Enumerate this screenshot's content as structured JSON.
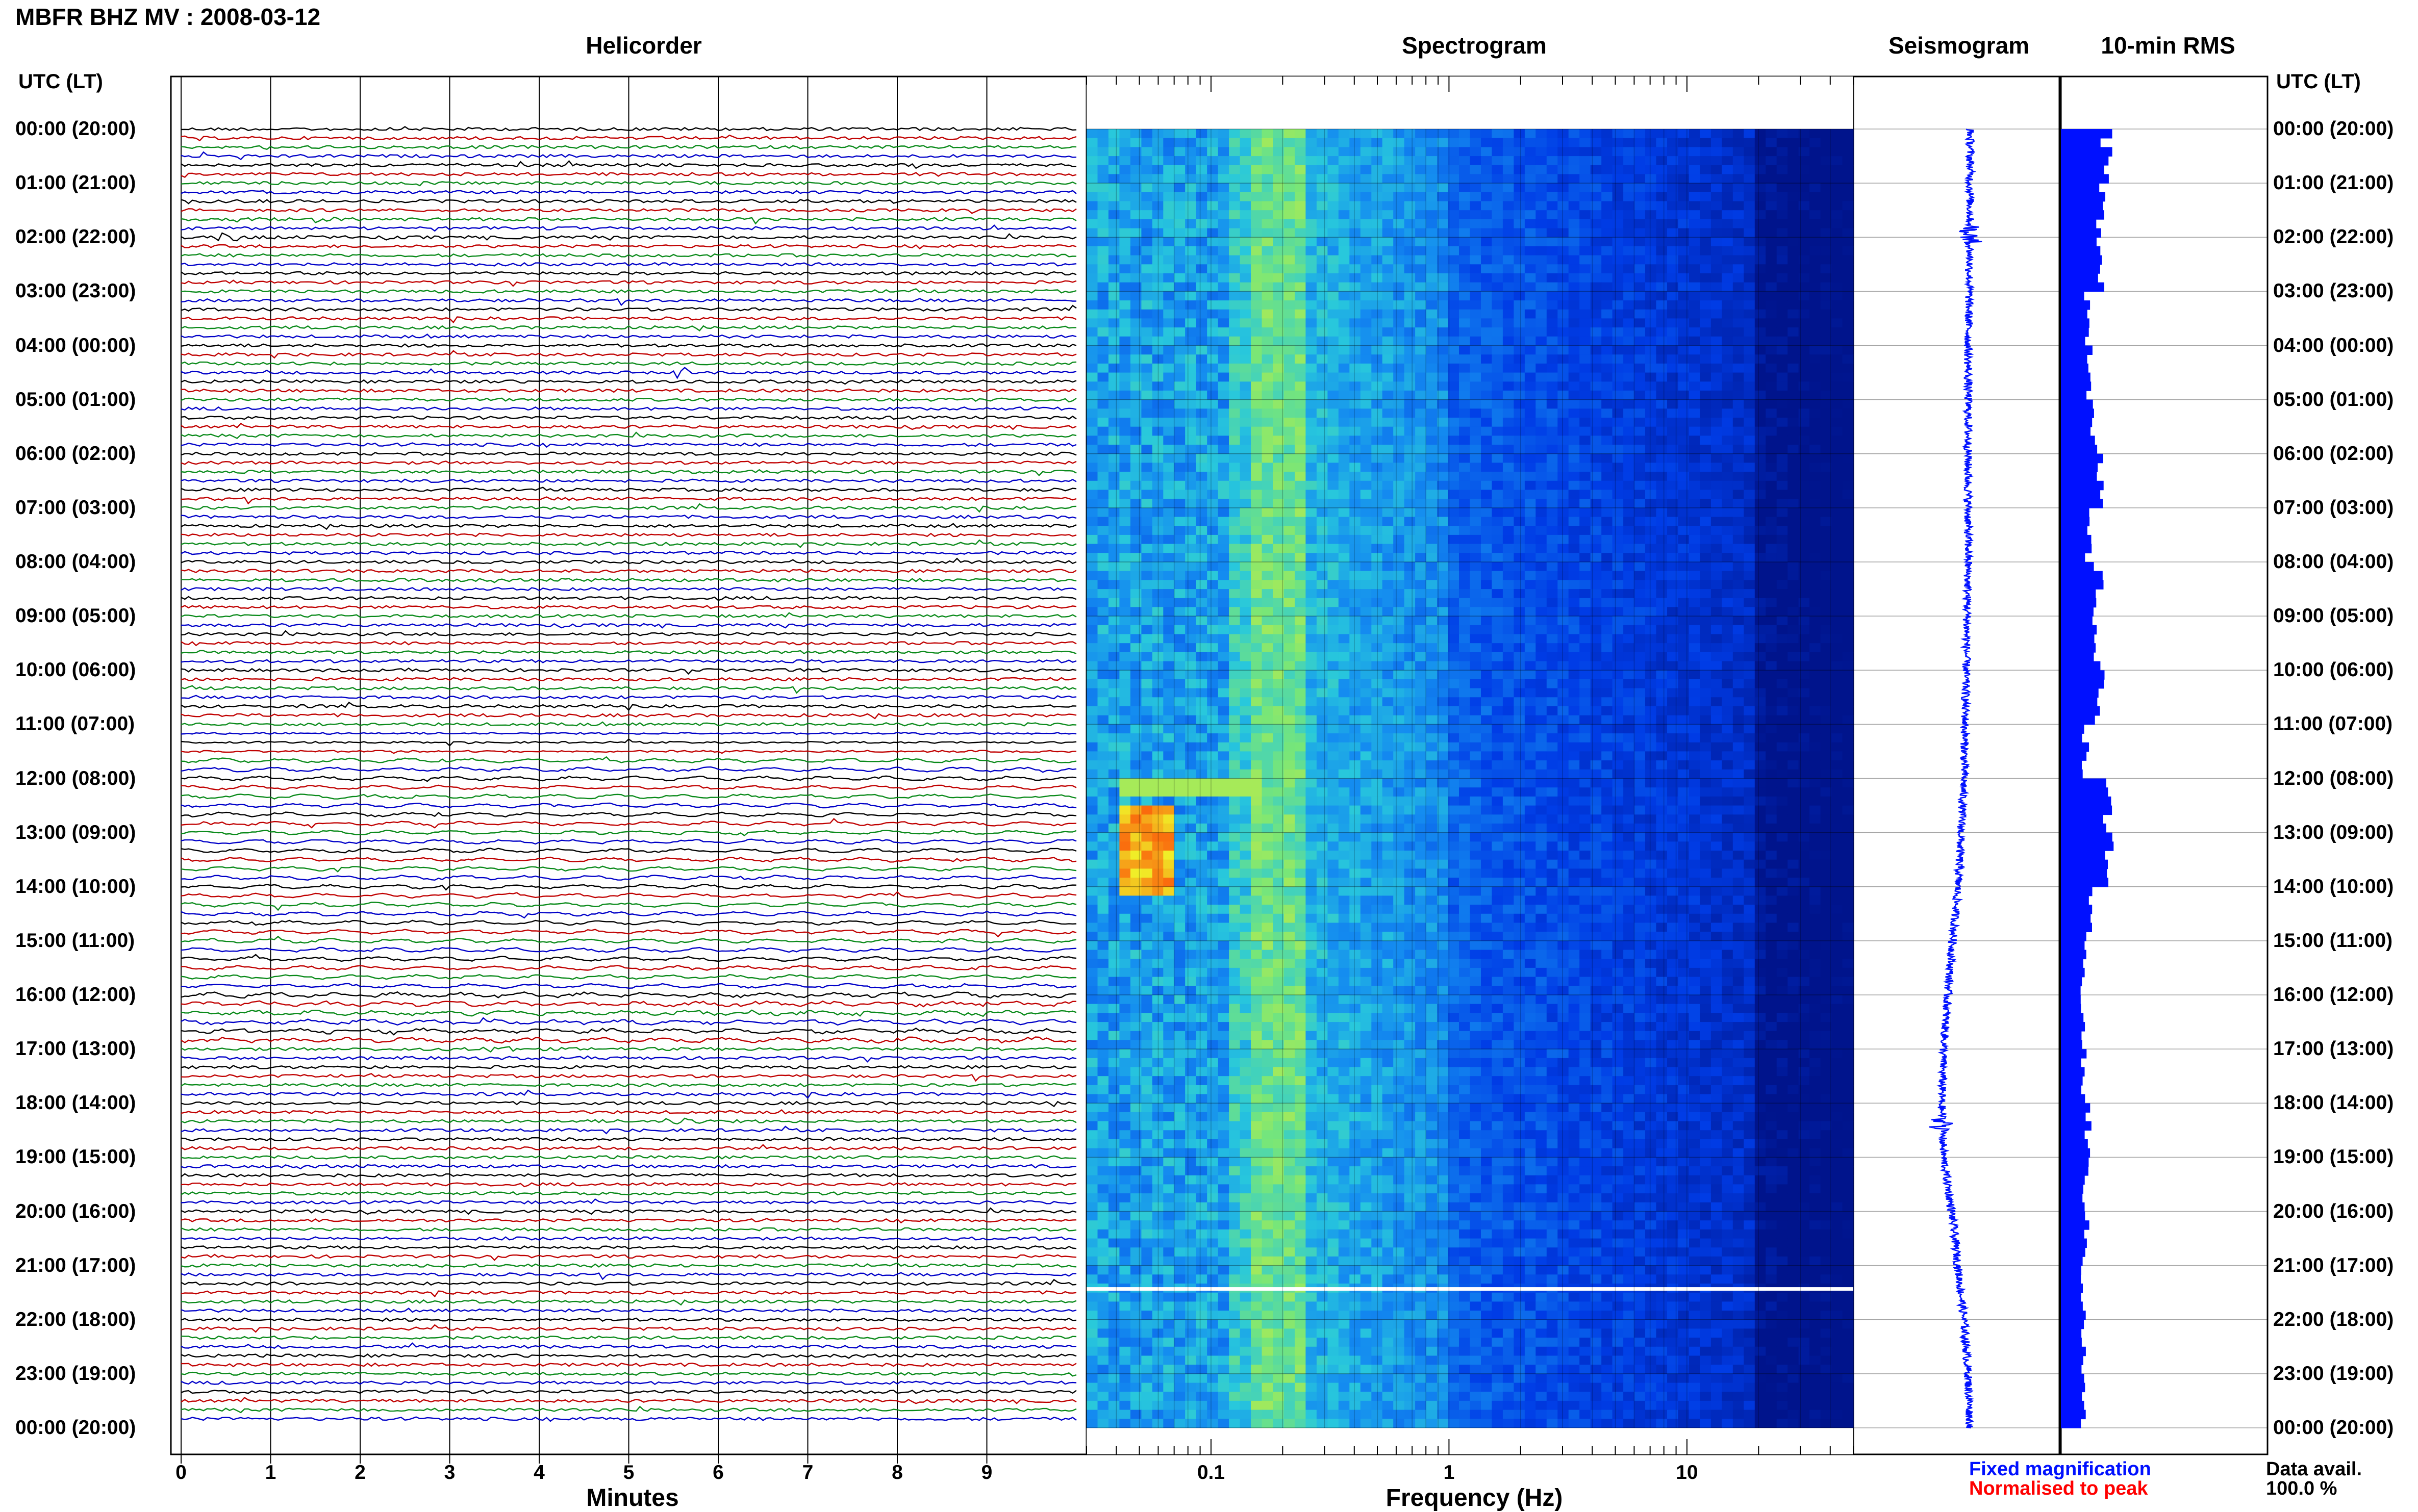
{
  "title": "MBFR BHZ MV : 2008-03-12",
  "panels": {
    "helicorder": "Helicorder",
    "spectrogram": "Spectrogram",
    "seismogram": "Seismogram",
    "rms": "10-min RMS"
  },
  "time_axis_header": "UTC (LT)",
  "time_labels": [
    "00:00 (20:00)",
    "01:00 (21:00)",
    "02:00 (22:00)",
    "03:00 (23:00)",
    "04:00 (00:00)",
    "05:00 (01:00)",
    "06:00 (02:00)",
    "07:00 (03:00)",
    "08:00 (04:00)",
    "09:00 (05:00)",
    "10:00 (06:00)",
    "11:00 (07:00)",
    "12:00 (08:00)",
    "13:00 (09:00)",
    "14:00 (10:00)",
    "15:00 (11:00)",
    "16:00 (12:00)",
    "17:00 (13:00)",
    "18:00 (14:00)",
    "19:00 (15:00)",
    "20:00 (16:00)",
    "21:00 (17:00)",
    "22:00 (18:00)",
    "23:00 (19:00)",
    "00:00 (20:00)"
  ],
  "helicorder_xlabel": "Minutes",
  "helicorder_xticks": [
    "0",
    "1",
    "2",
    "3",
    "4",
    "5",
    "6",
    "7",
    "8",
    "9"
  ],
  "spectrogram_xlabel": "Frequency (Hz)",
  "spectrogram_xticks": [
    "0.1",
    "1",
    "10"
  ],
  "legend": {
    "fixed": "Fixed magnification",
    "normalised": "Normalised to peak",
    "fixed_color": "#0010ff",
    "normalised_color": "#ff0000"
  },
  "data_availability": {
    "label": "Data avail.",
    "value": "100.0 %"
  },
  "colors": {
    "trace_cycle": [
      "#000000",
      "#c00000",
      "#0a8a1a",
      "#0000c8"
    ],
    "spectrogram_low": "#00148c",
    "spectrogram_high": "#ff0000",
    "seismogram": "#0010ff",
    "rms": "#0010ff"
  },
  "chart_data": [
    {
      "type": "line",
      "title": "Helicorder",
      "xlabel": "Minutes",
      "xlim": [
        0,
        10
      ],
      "rows": 144,
      "row_interval": "10 min",
      "series_color_cycle": [
        "black",
        "red",
        "green",
        "blue"
      ],
      "events_hour_row": [
        {
          "hour": 1.67,
          "minute": 1.6,
          "color": "red"
        },
        {
          "hour": 2.0,
          "minute": 0.5,
          "color": "green"
        },
        {
          "hour": 4.5,
          "minute": 5.6,
          "color": "green"
        },
        {
          "hour": 18.3,
          "minute": 5.6,
          "color": "blue"
        },
        {
          "hour": 17.0,
          "minute": 3.5,
          "color": "blue"
        }
      ]
    },
    {
      "type": "heatmap",
      "title": "Spectrogram",
      "xlabel": "Frequency (Hz)",
      "xscale": "log",
      "xlim": [
        0.03,
        50
      ],
      "ylim_hours": [
        0,
        24
      ],
      "peak_band_hz": [
        0.15,
        0.25
      ],
      "feature": {
        "hours": [
          12.4,
          14.0
        ],
        "freq_hz": [
          0.04,
          0.07
        ],
        "level": "high"
      },
      "gap_hour": 21.4
    },
    {
      "type": "line",
      "title": "Seismogram",
      "description_values": {
        "hours": [
          0,
          2,
          4,
          6,
          8,
          10,
          12,
          14,
          16,
          17,
          18,
          19,
          20,
          21,
          22,
          23,
          24
        ],
        "offset": [
          0,
          0,
          -0.05,
          -0.05,
          -0.05,
          -0.1,
          -0.15,
          -0.3,
          -0.55,
          -0.65,
          -0.7,
          -0.65,
          -0.45,
          -0.3,
          -0.15,
          -0.05,
          0
        ]
      }
    },
    {
      "type": "bar",
      "title": "10-min RMS",
      "orientation": "horizontal",
      "x_hours": [
        0,
        1,
        2,
        3,
        4,
        5,
        6,
        7,
        8,
        9,
        10,
        11,
        12,
        13,
        14,
        15,
        16,
        17,
        18,
        19,
        20,
        21,
        22,
        23
      ],
      "values": [
        0.9,
        0.8,
        0.85,
        0.55,
        0.6,
        0.7,
        0.75,
        0.55,
        0.75,
        0.7,
        0.8,
        0.5,
        0.9,
        1.0,
        0.55,
        0.45,
        0.45,
        0.45,
        0.55,
        0.5,
        0.5,
        0.45,
        0.45,
        0.45
      ]
    }
  ]
}
